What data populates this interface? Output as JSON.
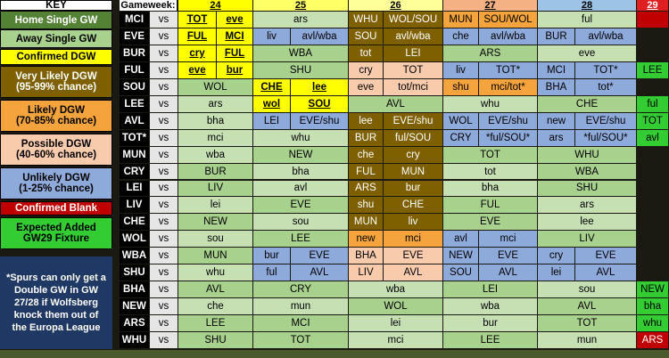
{
  "key": {
    "title": "KEY",
    "items": [
      {
        "label": "Home Single GW",
        "color": "#548235"
      },
      {
        "label": "Away Single GW",
        "color": "#a9d18e"
      },
      {
        "label": "Confirmed DGW",
        "color": "#ffff00"
      },
      {
        "label": "Very Likely DGW\n(95-99% chance)",
        "color": "#7f6000"
      },
      {
        "label": "Likely DGW\n(70-85% chance)",
        "color": "#f5a33c"
      },
      {
        "label": "Possible DGW\n(40-60% chance)",
        "color": "#f8cbad"
      },
      {
        "label": "Unlikely DGW\n(1-25% chance)",
        "color": "#8eaadb"
      },
      {
        "label": "Confirmed Blank",
        "color": "#c00000"
      },
      {
        "label": "Expected Added\nGW29 Fixture",
        "color": "#33cc33"
      }
    ],
    "note": "*Spurs can only get a Double GW in GW 27/28 if Wolfsberg knock them out of the Europa League",
    "note_color": "#1f3864"
  },
  "table": {
    "gameweek_label": "Gameweek:",
    "gameweeks": [
      {
        "label": "24",
        "color": "#ffff00"
      },
      {
        "label": "25",
        "color": "#ffff66"
      },
      {
        "label": "26",
        "color": "#ffff99"
      },
      {
        "label": "27",
        "color": "#f4b183"
      },
      {
        "label": "28",
        "color": "#9dc3e6"
      },
      {
        "label": "29",
        "color": "#e02020"
      }
    ],
    "rows": [
      {
        "team": "MCI",
        "vs": "vs",
        "gws": [
          [
            {
              "t": "TOT",
              "f": "#ffff00"
            },
            {
              "t": "eve",
              "f": "#ffff00"
            }
          ],
          [
            {
              "t": "ars",
              "f": "#c6e0b4"
            }
          ],
          [
            {
              "t": "WHU",
              "f": "#7f6000"
            },
            {
              "t": "WOL/SOU",
              "f": "#7f6000"
            }
          ],
          [
            {
              "t": "MUN",
              "f": "#f5a33c"
            },
            {
              "t": "SOU/WOL",
              "f": "#f5a33c"
            }
          ],
          [
            {
              "t": "ful",
              "f": "#c6e0b4"
            }
          ],
          [
            {
              "f": "#c00000"
            }
          ]
        ]
      },
      {
        "team": "EVE",
        "vs": "vs",
        "gws": [
          [
            {
              "t": "FUL",
              "f": "#ffff00"
            },
            {
              "t": "MCI",
              "f": "#ffff00"
            }
          ],
          [
            {
              "t": "liv",
              "f": "#8eaadb"
            },
            {
              "t": "avl/wba",
              "f": "#8eaadb"
            }
          ],
          [
            {
              "t": "SOU",
              "f": "#7f6000"
            },
            {
              "t": "avl/wba",
              "f": "#7f6000"
            }
          ],
          [
            {
              "t": "che",
              "f": "#8eaadb"
            },
            {
              "t": "avl/wba",
              "f": "#8eaadb"
            }
          ],
          [
            {
              "t": "BUR",
              "f": "#8eaadb"
            },
            {
              "t": "avl/wba",
              "f": "#8eaadb"
            }
          ],
          []
        ]
      },
      {
        "team": "BUR",
        "vs": "vs",
        "gws": [
          [
            {
              "t": "cry",
              "f": "#ffff00"
            },
            {
              "t": "FUL",
              "f": "#ffff00"
            }
          ],
          [
            {
              "t": "WBA",
              "f": "#a9d18e"
            }
          ],
          [
            {
              "t": "tot",
              "f": "#7f6000"
            },
            {
              "t": "LEI",
              "f": "#7f6000"
            }
          ],
          [
            {
              "t": "ARS",
              "f": "#a9d18e"
            }
          ],
          [
            {
              "t": "eve",
              "f": "#c6e0b4"
            }
          ],
          []
        ]
      },
      {
        "team": "FUL",
        "vs": "vs",
        "gws": [
          [
            {
              "t": "eve",
              "f": "#ffff00"
            },
            {
              "t": "bur",
              "f": "#ffff00"
            }
          ],
          [
            {
              "t": "SHU",
              "f": "#a9d18e"
            }
          ],
          [
            {
              "t": "cry",
              "f": "#f8cbad"
            },
            {
              "t": "TOT",
              "f": "#f8cbad"
            }
          ],
          [
            {
              "t": "liv",
              "f": "#8eaadb"
            },
            {
              "t": "TOT*",
              "f": "#8eaadb"
            }
          ],
          [
            {
              "t": "MCI",
              "f": "#8eaadb"
            },
            {
              "t": "TOT*",
              "f": "#8eaadb"
            }
          ],
          [
            {
              "t": "LEE",
              "f": "#33cc33"
            }
          ]
        ]
      },
      {
        "team": "SOU",
        "vs": "vs",
        "gws": [
          [
            {
              "t": "WOL",
              "f": "#a9d18e"
            }
          ],
          [
            {
              "t": "CHE",
              "f": "#ffff00"
            },
            {
              "t": "lee",
              "f": "#ffff00"
            }
          ],
          [
            {
              "t": "eve",
              "f": "#f8cbad"
            },
            {
              "t": "tot/mci",
              "f": "#f8cbad"
            }
          ],
          [
            {
              "t": "shu",
              "f": "#f5a33c"
            },
            {
              "t": "mci/tot*",
              "f": "#f5a33c"
            }
          ],
          [
            {
              "t": "BHA",
              "f": "#8eaadb"
            },
            {
              "t": "tot*",
              "f": "#8eaadb"
            }
          ],
          []
        ]
      },
      {
        "team": "LEE",
        "vs": "vs",
        "gws": [
          [
            {
              "t": "ars",
              "f": "#c6e0b4"
            }
          ],
          [
            {
              "t": "wol",
              "f": "#ffff00"
            },
            {
              "t": "SOU",
              "f": "#ffff00"
            }
          ],
          [
            {
              "t": "AVL",
              "f": "#a9d18e"
            }
          ],
          [
            {
              "t": "whu",
              "f": "#c6e0b4"
            }
          ],
          [
            {
              "t": "CHE",
              "f": "#a9d18e"
            }
          ],
          [
            {
              "t": "ful",
              "f": "#33cc33"
            }
          ]
        ]
      },
      {
        "team": "AVL",
        "vs": "vs",
        "gws": [
          [
            {
              "t": "bha",
              "f": "#c6e0b4"
            }
          ],
          [
            {
              "t": "LEI",
              "f": "#8eaadb"
            },
            {
              "t": "EVE/shu",
              "f": "#8eaadb"
            }
          ],
          [
            {
              "t": "lee",
              "f": "#7f6000"
            },
            {
              "t": "EVE/shu",
              "f": "#7f6000"
            }
          ],
          [
            {
              "t": "WOL",
              "f": "#8eaadb"
            },
            {
              "t": "EVE/shu",
              "f": "#8eaadb"
            }
          ],
          [
            {
              "t": "new",
              "f": "#8eaadb"
            },
            {
              "t": "EVE/shu",
              "f": "#8eaadb"
            }
          ],
          [
            {
              "t": "TOT",
              "f": "#33cc33"
            }
          ]
        ]
      },
      {
        "team": "TOT*",
        "vs": "vs",
        "gws": [
          [
            {
              "t": "mci",
              "f": "#c6e0b4"
            }
          ],
          [
            {
              "t": "whu",
              "f": "#c6e0b4"
            }
          ],
          [
            {
              "t": "BUR",
              "f": "#7f6000"
            },
            {
              "t": "ful/SOU",
              "f": "#7f6000"
            }
          ],
          [
            {
              "t": "CRY",
              "f": "#8eaadb"
            },
            {
              "t": "*ful/SOU*",
              "f": "#8eaadb"
            }
          ],
          [
            {
              "t": "ars",
              "f": "#8eaadb"
            },
            {
              "t": "*ful/SOU*",
              "f": "#8eaadb"
            }
          ],
          [
            {
              "t": "avl",
              "f": "#33cc33"
            }
          ]
        ]
      },
      {
        "team": "MUN",
        "vs": "vs",
        "gws": [
          [
            {
              "t": "wba",
              "f": "#c6e0b4"
            }
          ],
          [
            {
              "t": "NEW",
              "f": "#a9d18e"
            }
          ],
          [
            {
              "t": "che",
              "f": "#7f6000"
            },
            {
              "t": "cry",
              "f": "#7f6000"
            }
          ],
          [
            {
              "t": "TOT",
              "f": "#a9d18e"
            }
          ],
          [
            {
              "t": "WHU",
              "f": "#a9d18e"
            }
          ],
          []
        ]
      },
      {
        "team": "CRY",
        "vs": "vs",
        "gws": [
          [
            {
              "t": "BUR",
              "f": "#a9d18e"
            }
          ],
          [
            {
              "t": "bha",
              "f": "#c6e0b4"
            }
          ],
          [
            {
              "t": "FUL",
              "f": "#7f6000"
            },
            {
              "t": "MUN",
              "f": "#7f6000"
            }
          ],
          [
            {
              "t": "tot",
              "f": "#c6e0b4"
            }
          ],
          [
            {
              "t": "WBA",
              "f": "#a9d18e"
            }
          ],
          []
        ]
      },
      {
        "team": "LEI",
        "vs": "vs",
        "gws": [
          [
            {
              "t": "LIV",
              "f": "#a9d18e"
            }
          ],
          [
            {
              "t": "avl",
              "f": "#c6e0b4"
            }
          ],
          [
            {
              "t": "ARS",
              "f": "#7f6000"
            },
            {
              "t": "bur",
              "f": "#7f6000"
            }
          ],
          [
            {
              "t": "bha",
              "f": "#c6e0b4"
            }
          ],
          [
            {
              "t": "SHU",
              "f": "#a9d18e"
            }
          ],
          []
        ]
      },
      {
        "team": "LIV",
        "vs": "vs",
        "gws": [
          [
            {
              "t": "lei",
              "f": "#c6e0b4"
            }
          ],
          [
            {
              "t": "EVE",
              "f": "#a9d18e"
            }
          ],
          [
            {
              "t": "shu",
              "f": "#7f6000"
            },
            {
              "t": "CHE",
              "f": "#7f6000"
            }
          ],
          [
            {
              "t": "FUL",
              "f": "#a9d18e"
            }
          ],
          [
            {
              "t": "ars",
              "f": "#c6e0b4"
            }
          ],
          []
        ]
      },
      {
        "team": "CHE",
        "vs": "vs",
        "gws": [
          [
            {
              "t": "NEW",
              "f": "#a9d18e"
            }
          ],
          [
            {
              "t": "sou",
              "f": "#c6e0b4"
            }
          ],
          [
            {
              "t": "MUN",
              "f": "#7f6000"
            },
            {
              "t": "liv",
              "f": "#7f6000"
            }
          ],
          [
            {
              "t": "EVE",
              "f": "#a9d18e"
            }
          ],
          [
            {
              "t": "lee",
              "f": "#c6e0b4"
            }
          ],
          []
        ]
      },
      {
        "team": "WOL",
        "vs": "vs",
        "gws": [
          [
            {
              "t": "sou",
              "f": "#c6e0b4"
            }
          ],
          [
            {
              "t": "LEE",
              "f": "#a9d18e"
            }
          ],
          [
            {
              "t": "new",
              "f": "#f5a33c"
            },
            {
              "t": "mci",
              "f": "#f5a33c"
            }
          ],
          [
            {
              "t": "avl",
              "f": "#8eaadb"
            },
            {
              "t": "mci",
              "f": "#8eaadb"
            }
          ],
          [
            {
              "t": "LIV",
              "f": "#a9d18e"
            }
          ],
          []
        ]
      },
      {
        "team": "WBA",
        "vs": "vs",
        "gws": [
          [
            {
              "t": "MUN",
              "f": "#a9d18e"
            }
          ],
          [
            {
              "t": "bur",
              "f": "#8eaadb"
            },
            {
              "t": "EVE",
              "f": "#8eaadb"
            }
          ],
          [
            {
              "t": "BHA",
              "f": "#f8cbad"
            },
            {
              "t": "EVE",
              "f": "#f8cbad"
            }
          ],
          [
            {
              "t": "NEW",
              "f": "#8eaadb"
            },
            {
              "t": "EVE",
              "f": "#8eaadb"
            }
          ],
          [
            {
              "t": "cry",
              "f": "#8eaadb"
            },
            {
              "t": "EVE",
              "f": "#8eaadb"
            }
          ],
          []
        ]
      },
      {
        "team": "SHU",
        "vs": "vs",
        "gws": [
          [
            {
              "t": "whu",
              "f": "#c6e0b4"
            }
          ],
          [
            {
              "t": "ful",
              "f": "#8eaadb"
            },
            {
              "t": "AVL",
              "f": "#8eaadb"
            }
          ],
          [
            {
              "t": "LIV",
              "f": "#f8cbad"
            },
            {
              "t": "AVL",
              "f": "#f8cbad"
            }
          ],
          [
            {
              "t": "SOU",
              "f": "#8eaadb"
            },
            {
              "t": "AVL",
              "f": "#8eaadb"
            }
          ],
          [
            {
              "t": "lei",
              "f": "#8eaadb"
            },
            {
              "t": "AVL",
              "f": "#8eaadb"
            }
          ],
          []
        ]
      },
      {
        "team": "BHA",
        "vs": "vs",
        "gws": [
          [
            {
              "t": "AVL",
              "f": "#a9d18e"
            }
          ],
          [
            {
              "t": "CRY",
              "f": "#a9d18e"
            }
          ],
          [
            {
              "t": "wba",
              "f": "#c6e0b4"
            }
          ],
          [
            {
              "t": "LEI",
              "f": "#a9d18e"
            }
          ],
          [
            {
              "t": "sou",
              "f": "#c6e0b4"
            }
          ],
          [
            {
              "t": "NEW",
              "f": "#33cc33"
            }
          ]
        ]
      },
      {
        "team": "NEW",
        "vs": "vs",
        "gws": [
          [
            {
              "t": "che",
              "f": "#c6e0b4"
            }
          ],
          [
            {
              "t": "mun",
              "f": "#c6e0b4"
            }
          ],
          [
            {
              "t": "WOL",
              "f": "#a9d18e"
            }
          ],
          [
            {
              "t": "wba",
              "f": "#c6e0b4"
            }
          ],
          [
            {
              "t": "AVL",
              "f": "#a9d18e"
            }
          ],
          [
            {
              "t": "bha",
              "f": "#33cc33"
            }
          ]
        ]
      },
      {
        "team": "ARS",
        "vs": "vs",
        "gws": [
          [
            {
              "t": "LEE",
              "f": "#a9d18e"
            }
          ],
          [
            {
              "t": "MCI",
              "f": "#a9d18e"
            }
          ],
          [
            {
              "t": "lei",
              "f": "#c6e0b4"
            }
          ],
          [
            {
              "t": "bur",
              "f": "#c6e0b4"
            }
          ],
          [
            {
              "t": "TOT",
              "f": "#a9d18e"
            }
          ],
          [
            {
              "t": "whu",
              "f": "#33cc33"
            }
          ]
        ]
      },
      {
        "team": "WHU",
        "vs": "vs",
        "gws": [
          [
            {
              "t": "SHU",
              "f": "#a9d18e"
            }
          ],
          [
            {
              "t": "TOT",
              "f": "#a9d18e"
            }
          ],
          [
            {
              "t": "mci",
              "f": "#c6e0b4"
            }
          ],
          [
            {
              "t": "LEE",
              "f": "#a9d18e"
            }
          ],
          [
            {
              "t": "mun",
              "f": "#c6e0b4"
            }
          ],
          [
            {
              "t": "ARS",
              "f": "#c00000"
            }
          ]
        ]
      }
    ]
  }
}
